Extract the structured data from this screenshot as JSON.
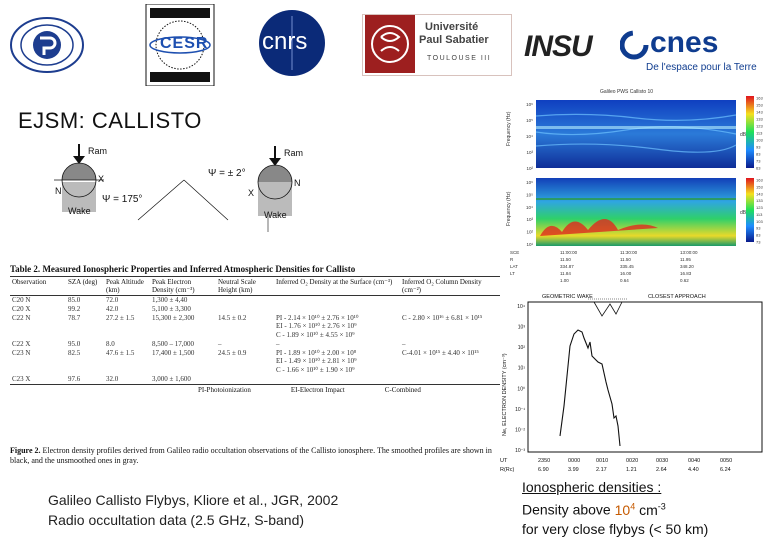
{
  "logos": {
    "cesr_text": "CESR",
    "cnrs_text": "cnrs",
    "ups_line1": "Université",
    "ups_line2": "Paul Sabatier",
    "ups_line3": "TOULOUSE III",
    "insu_text": "INSU",
    "cnes_text": "cnes",
    "cnes_tagline": "De l'espace pour la Terre"
  },
  "title": "EJSM: CALLISTO",
  "geometry": {
    "ram_left": "Ram",
    "ram_right": "Ram",
    "n_left": "N",
    "x_left": "X",
    "n_right": "N",
    "x_right": "X",
    "wake_left": "Wake",
    "wake_right": "Wake",
    "psi_left": "Ψ = 175°",
    "psi_mid": "Ψ = ± 2°"
  },
  "table": {
    "number": "Table 2.",
    "caption": "Measured Ionospheric Properties and Inferred Atmospheric Densities for Callisto",
    "headers": [
      "Observation",
      "SZA (deg)",
      "Peak Altitude (km)",
      "Peak Electron Density (cm⁻³)",
      "Neutral Scale Height (km)",
      "Inferred O₂ Density at the Surface (cm⁻³)",
      "Inferred O₂ Column Density (cm⁻²)"
    ],
    "rows": [
      [
        "C20 N",
        "85.0",
        "72.0",
        "1,300 ± 4,40",
        "",
        "",
        ""
      ],
      [
        "C20 X",
        "99.2",
        "42.0",
        "5,100 ± 3,300",
        "",
        "",
        ""
      ],
      [
        "C22 N",
        "78.7",
        "27.2 ± 1.5",
        "15,300 ± 2,300",
        "14.5 ± 0.2",
        "PI - 2.14 × 10¹⁰ ± 2.76 × 10¹⁰\nEI - 1.76 × 10¹⁰ ± 2.76 × 10⁹\nC - 1.89 × 10¹⁰ ± 4.55 × 10⁹",
        "C - 2.80 × 10¹⁶ ± 6.81 × 10¹⁵"
      ],
      [
        "C22 X",
        "95.0",
        "8.0",
        "8,500 – 17,000",
        "–",
        "–",
        "–"
      ],
      [
        "C23 N",
        "82.5",
        "47.6 ± 1.5",
        "17,400 ± 1,500",
        "24.5 ± 0.9",
        "PI - 1.89 × 10¹⁰ ± 2.00 × 10⁸\nEI - 1.49 × 10¹⁰ ± 2.81 × 10⁹\nC - 1.66 × 10¹⁰ ± 1.90 × 10⁹",
        "C-4.01 × 10¹⁵ ± 4.40 × 10¹⁵"
      ],
      [
        "C23 X",
        "97.6",
        "32.0",
        "3,000 ± 1,600",
        "",
        "",
        ""
      ]
    ],
    "footnotes": [
      "PI-Photoionization",
      "EI-Electron Impact",
      "C-Combined"
    ]
  },
  "figure_caption": {
    "lead": "Figure 2.",
    "text": "Electron density profiles derived from Galileo radio occultation observations of the Callisto ionosphere. The smoothed profiles are shown in black, and the unsmoothed ones in gray."
  },
  "citation": {
    "line1": "Galileo Callisto Flybys, Kliore et al., JGR, 2002",
    "line2": "Radio occultation data (2.5 GHz, S-band)"
  },
  "spectrogram": {
    "title": "Galileo PWS Callisto 10",
    "ylabel_top": "Frequency (Hz)",
    "ylabel_bottom": "Frequency (Hz)",
    "cbar_label": "dB",
    "y_ticks_top": [
      "10⁶",
      "10⁵",
      "10⁴",
      "10³",
      "10²"
    ],
    "y_ticks_bottom": [
      "10⁶",
      "10⁵",
      "10⁴",
      "10³",
      "10²",
      "10¹"
    ],
    "cbar_ticks_top": [
      "163",
      "153",
      "143",
      "133",
      "123",
      "113",
      "103",
      "93",
      "83",
      "73",
      "63"
    ],
    "cbar_ticks_bottom": [
      "163",
      "153",
      "143",
      "133",
      "123",
      "113",
      "103",
      "93",
      "83",
      "73"
    ],
    "axis_rows": [
      [
        "SCE",
        "11:00:00",
        "11:30:00",
        "13:00:00"
      ],
      [
        "R",
        "11.50",
        "11.50",
        "11.95"
      ],
      [
        "LAT",
        "334.87",
        "335.45",
        "348.20"
      ],
      [
        "LT",
        "11.84",
        "16.00",
        "16.83"
      ],
      [
        "",
        "1.00",
        "0.64",
        "0.62"
      ]
    ]
  },
  "profile": {
    "ylabel": "Ne, ELECTRON DENSITY (cm⁻³)",
    "top_label_left": "GEOMETRIC WAKE",
    "top_label_right": "CLOSEST APPROACH",
    "y_ticks": [
      "10⁴",
      "10³",
      "10²",
      "10¹",
      "10⁰",
      "10⁻¹",
      "10⁻²",
      "10⁻³"
    ],
    "x_rows": [
      [
        "UT",
        "2350",
        "0000",
        "0010",
        "0020",
        "0030",
        "0040",
        "0050"
      ],
      [
        "R(Rc)",
        "6.90",
        "3.99",
        "2.17",
        "1.21",
        "2.64",
        "4.40",
        "6.24"
      ]
    ]
  },
  "ionosphere": {
    "line1": "Ionospheric densities :",
    "line2_prefix": "Density above",
    "line2_value_base": "10",
    "line2_value_exp": "4",
    "line2_unit_base": "cm",
    "line2_unit_exp": "-3",
    "line3": "for very close flybys  (< 50 km)"
  }
}
